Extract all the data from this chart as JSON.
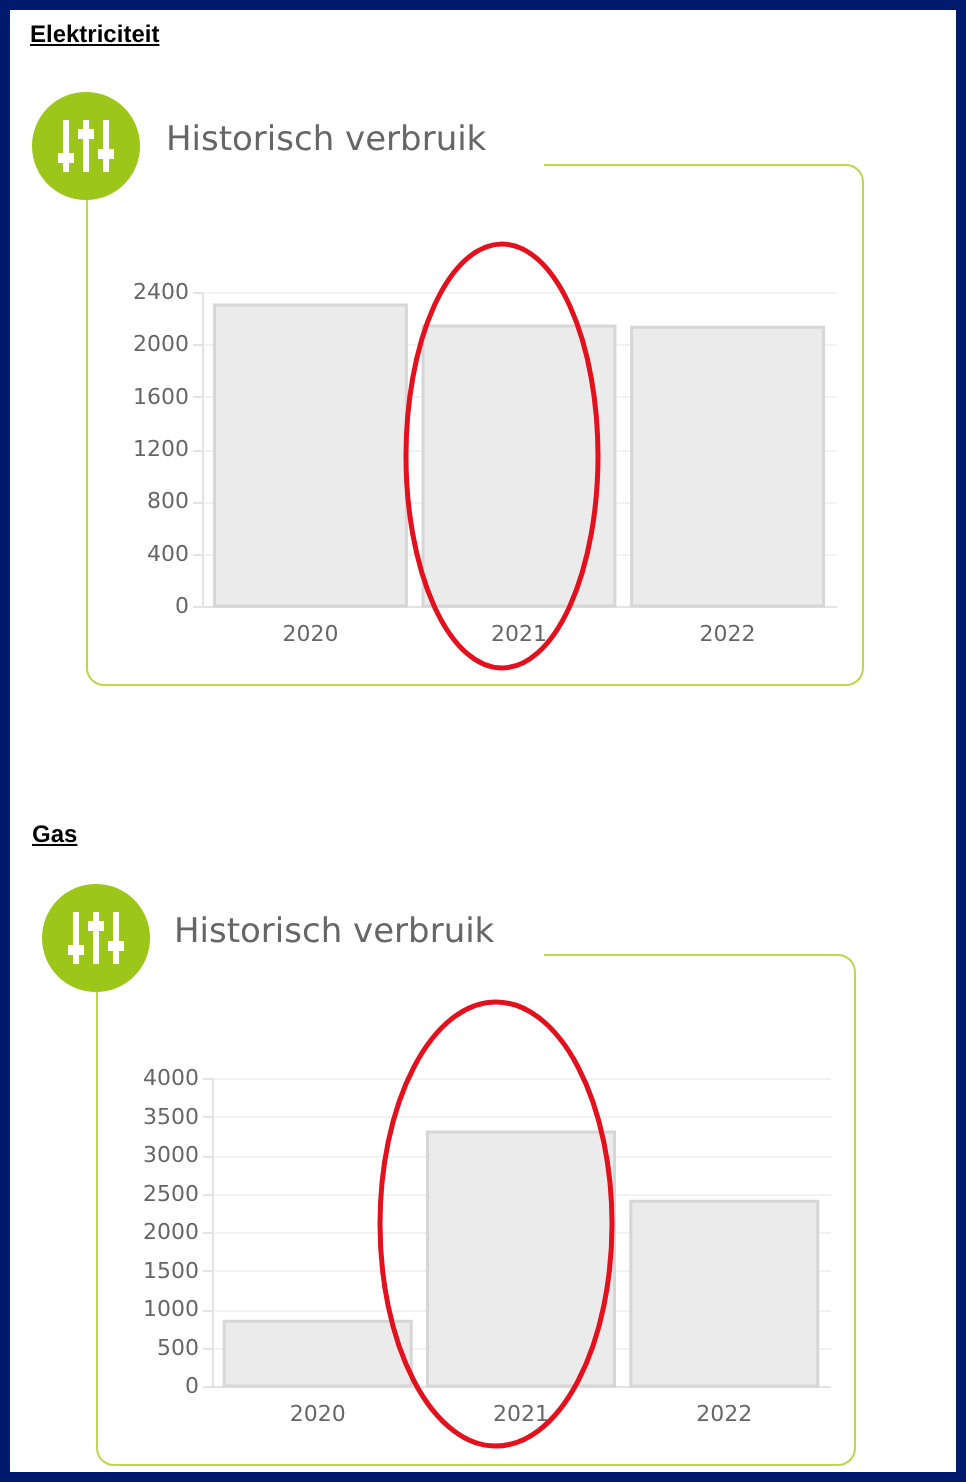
{
  "chart_data": [
    {
      "type": "bar",
      "title": "Elektriciteit",
      "subtitle": "Historisch verbruik",
      "categories": [
        "2020",
        "2021",
        "2022"
      ],
      "values": [
        2300,
        2140,
        2130
      ],
      "color": "#ebebeb",
      "ylim": [
        0,
        2400
      ],
      "yticks": [
        0,
        400,
        800,
        1200,
        1600,
        2000,
        2400
      ],
      "grid": "y"
    },
    {
      "type": "bar",
      "title": "Gas",
      "subtitle": "Historisch verbruik",
      "categories": [
        "2020",
        "2021",
        "2022"
      ],
      "values": [
        840,
        3300,
        2400
      ],
      "color": "#ebebeb",
      "ylim": [
        0,
        4000
      ],
      "yticks": [
        0,
        500,
        1000,
        1500,
        2000,
        2500,
        3000,
        3500,
        4000
      ],
      "grid": "y"
    }
  ]
}
